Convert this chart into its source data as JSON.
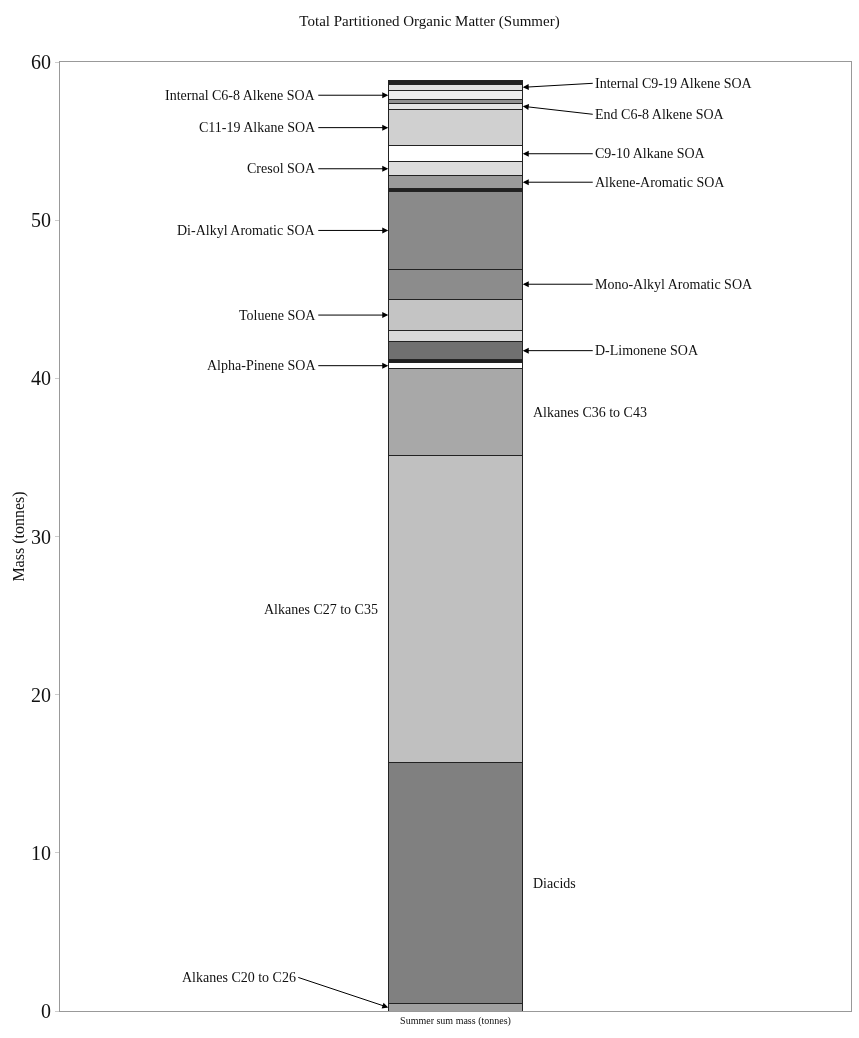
{
  "chart_data": {
    "type": "bar",
    "stacked": true,
    "title": "Total Partitioned Organic Matter (Summer)",
    "ylabel": "Mass (tonnes)",
    "categories": [
      "Summer sum mass (tonnes)"
    ],
    "ylim": [
      0,
      60
    ],
    "yticks": [
      0,
      10,
      20,
      30,
      40,
      50,
      60
    ],
    "grid": false,
    "legend": false,
    "series": [
      {
        "name": "Alkanes C20 to C26",
        "color": "#a0a0a0",
        "values": [
          0.45
        ]
      },
      {
        "name": "Diacids",
        "color": "#808080",
        "values": [
          15.25
        ]
      },
      {
        "name": "Alkanes C27 to C35",
        "color": "#c0c0c0",
        "values": [
          19.4
        ]
      },
      {
        "name": "Alkanes C36 to C43",
        "color": "#a8a8a8",
        "values": [
          5.5
        ]
      },
      {
        "name": "Alpha-Pinene SOA",
        "color": "#ffffff",
        "values": [
          0.4
        ]
      },
      {
        "color": "#202020",
        "values": [
          0.2
        ]
      },
      {
        "name": "D-Limonene SOA",
        "color": "#707070",
        "values": [
          1.1
        ]
      },
      {
        "color": "#d8d8d8",
        "values": [
          0.7
        ]
      },
      {
        "name": "Toluene SOA",
        "color": "#c4c4c4",
        "values": [
          2.0
        ]
      },
      {
        "name": "Mono-Alkyl Aromatic SOA",
        "color": "#8c8c8c",
        "values": [
          1.9
        ]
      },
      {
        "name": "Di-Alkyl Aromatic SOA",
        "color": "#8a8a8a",
        "values": [
          4.9
        ]
      },
      {
        "color": "#202020",
        "values": [
          0.2
        ]
      },
      {
        "name": "Alkene-Aromatic SOA",
        "color": "#9a9a9a",
        "values": [
          0.8
        ]
      },
      {
        "name": "Cresol SOA",
        "color": "#dcdcdc",
        "values": [
          0.9
        ]
      },
      {
        "name": "C9-10 Alkane SOA",
        "color": "#ffffff",
        "values": [
          1.0
        ]
      },
      {
        "name": "C11-19 Alkane SOA",
        "color": "#d0d0d0",
        "values": [
          2.3
        ]
      },
      {
        "name": "End C6-8 Alkene SOA",
        "color": "#e4e4e4",
        "values": [
          0.4
        ]
      },
      {
        "color": "#909090",
        "values": [
          0.2
        ]
      },
      {
        "name": "Internal C6-8 Alkene SOA",
        "color": "#ececec",
        "values": [
          0.6
        ]
      },
      {
        "name": "Internal C9-19 Alkene SOA",
        "color": "#e0e0e0",
        "values": [
          0.4
        ]
      },
      {
        "color": "#202020",
        "values": [
          0.2
        ]
      }
    ]
  }
}
